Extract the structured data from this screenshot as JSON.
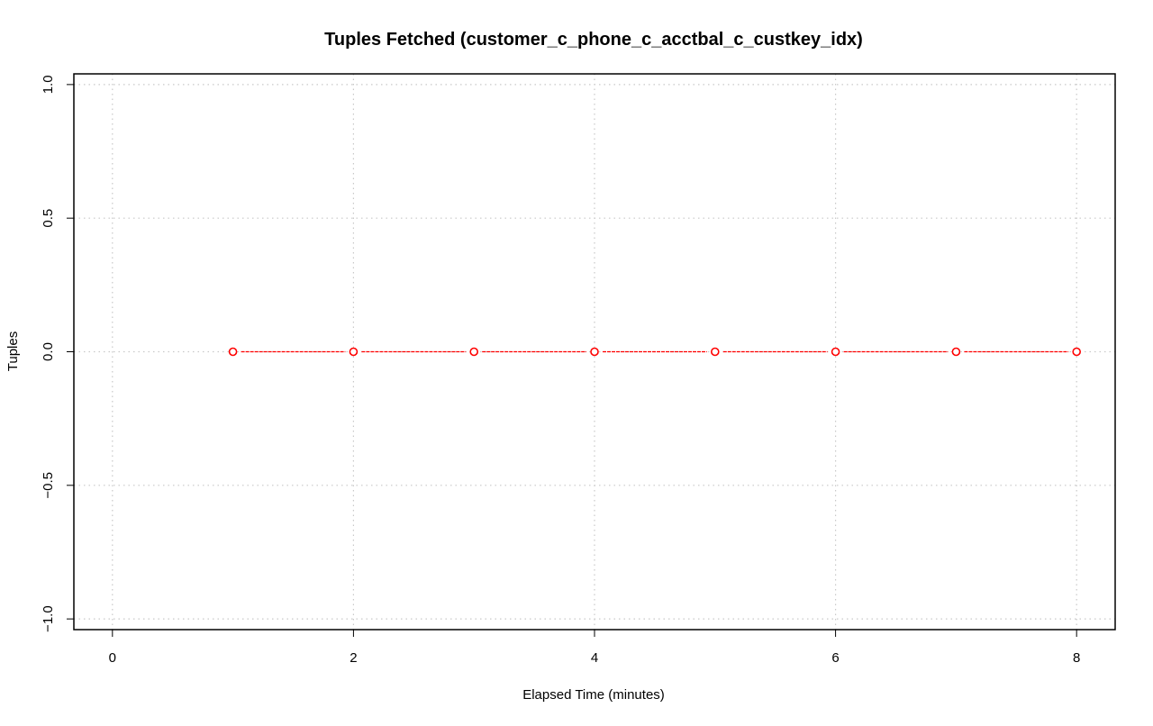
{
  "chart_data": {
    "type": "line",
    "title": "Tuples Fetched (customer_c_phone_c_acctbal_c_custkey_idx)",
    "xlabel": "Elapsed Time (minutes)",
    "ylabel": "Tuples",
    "xlim": [
      -0.32,
      8.32
    ],
    "ylim": [
      -1.04,
      1.04
    ],
    "x_ticks": [
      0,
      2,
      4,
      6,
      8
    ],
    "y_ticks": [
      -1.0,
      -0.5,
      0.0,
      0.5,
      1.0
    ],
    "x_tick_labels": [
      "0",
      "2",
      "4",
      "6",
      "8"
    ],
    "y_tick_labels": [
      "−1.0",
      "−0.5",
      "0.0",
      "0.5",
      "1.0"
    ],
    "grid": true,
    "grid_x": [
      0,
      2,
      4,
      6,
      8
    ],
    "grid_y": [
      -1.0,
      -0.5,
      0.0,
      0.5,
      1.0
    ],
    "series": [
      {
        "color": "#ff0000",
        "marker": "open-circle",
        "line_style": "dashed",
        "x": [
          1,
          2,
          3,
          4,
          5,
          6,
          7,
          8
        ],
        "y": [
          0,
          0,
          0,
          0,
          0,
          0,
          0,
          0
        ]
      }
    ],
    "colors": {
      "grid": "#c8c8c8",
      "frame": "#000000",
      "series": "#ff0000"
    }
  }
}
